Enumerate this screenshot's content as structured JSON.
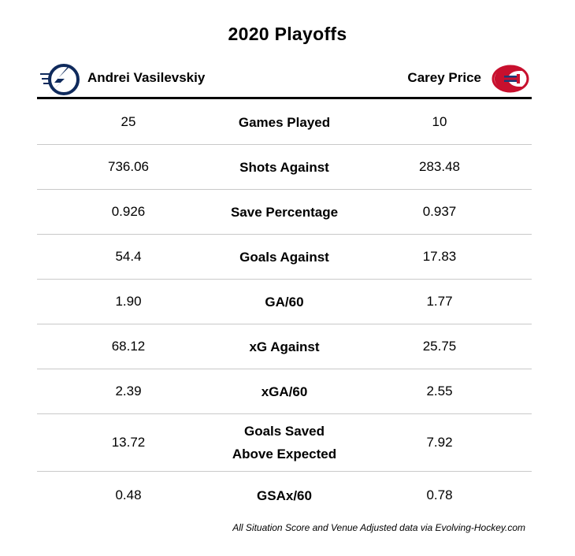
{
  "title": "2020 Playoffs",
  "players": {
    "left": {
      "name": "Andrei Vasilevskiy",
      "logo_icon": "lightning-logo-icon",
      "logo_color": "#0f2a5c"
    },
    "right": {
      "name": "Carey Price",
      "logo_icon": "canadiens-logo-icon",
      "logo_color": "#c8102e"
    }
  },
  "rows": [
    {
      "left": "25",
      "stat": "Games Played",
      "right": "10"
    },
    {
      "left": "736.06",
      "stat": "Shots Against",
      "right": "283.48"
    },
    {
      "left": "0.926",
      "stat": "Save Percentage",
      "right": "0.937"
    },
    {
      "left": "54.4",
      "stat": "Goals Against",
      "right": "17.83"
    },
    {
      "left": "1.90",
      "stat": "GA/60",
      "right": "1.77"
    },
    {
      "left": "68.12",
      "stat": "xG Against",
      "right": "25.75"
    },
    {
      "left": "2.39",
      "stat": "xGA/60",
      "right": "2.55"
    },
    {
      "left": "13.72",
      "stat_line1": "Goals Saved",
      "stat_line2": "Above Expected",
      "right": "7.92"
    },
    {
      "left": "0.48",
      "stat": "GSAx/60",
      "right": "0.78"
    }
  ],
  "footnote": "All Situation Score and Venue Adjusted data via Evolving-Hockey.com"
}
